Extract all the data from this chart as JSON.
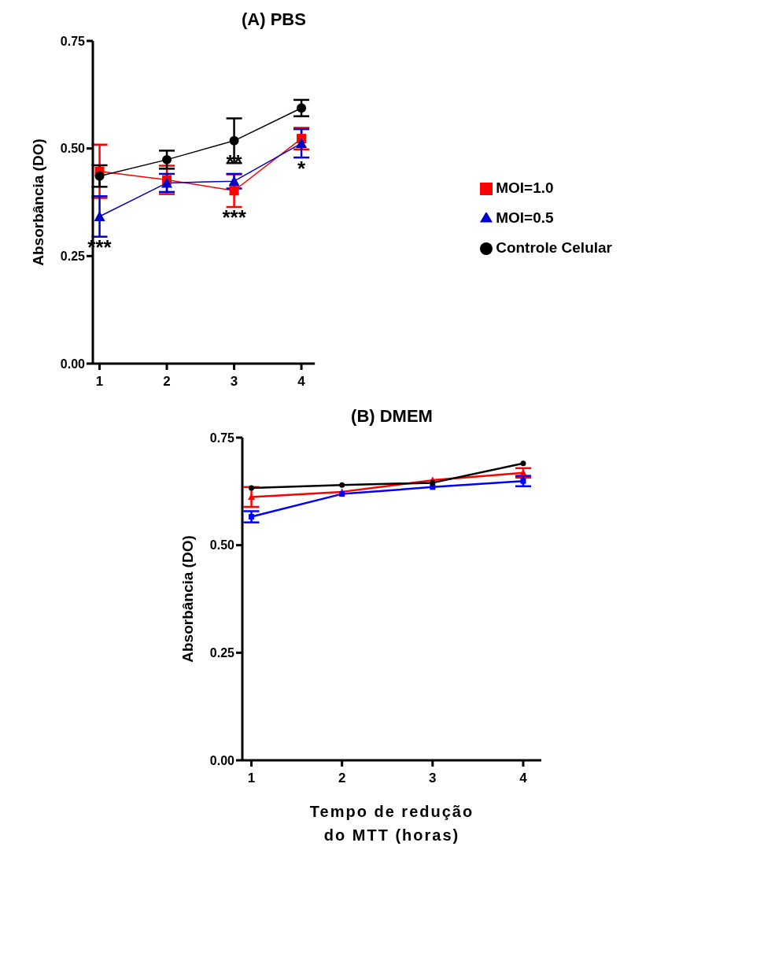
{
  "chart_data": [
    {
      "type": "line",
      "title": "(A) PBS",
      "ylabel": "Absorbância (DO)",
      "x": [
        1,
        2,
        3,
        4
      ],
      "xlim": [
        0.9,
        4.2
      ],
      "xticks": [
        1,
        2,
        3,
        4
      ],
      "ylim": [
        0,
        0.75
      ],
      "yticks": [
        {
          "value": 0,
          "label": "0.00"
        },
        {
          "value": 0.25,
          "label": "0.25"
        },
        {
          "value": 0.5,
          "label": "0.50"
        },
        {
          "value": 0.75,
          "label": "0.75"
        }
      ],
      "grid": false,
      "legend": "right",
      "series": [
        {
          "name": "MOI=1.0",
          "color": "#ff0000",
          "marker": "square",
          "values": [
            0.447,
            0.427,
            0.402,
            0.523
          ],
          "errors": [
            0.062,
            0.033,
            0.038,
            0.025
          ]
        },
        {
          "name": "MOI=0.5",
          "color": "#0000cc",
          "marker": "triangle",
          "values": [
            0.342,
            0.42,
            0.424,
            0.512
          ],
          "errors": [
            0.047,
            0.021,
            0.017,
            0.033
          ]
        },
        {
          "name": "Controle Celular",
          "color": "#000000",
          "marker": "circle",
          "values": [
            0.436,
            0.474,
            0.518,
            0.594
          ],
          "errors": [
            0.025,
            0.021,
            0.052,
            0.019
          ]
        }
      ],
      "annotations": [
        {
          "text": "***",
          "x": 1,
          "y": 0.295
        },
        {
          "text": "**",
          "x": 3,
          "y": 0.441
        },
        {
          "text": "***",
          "x": 3,
          "y": 0.364
        },
        {
          "text": "*",
          "x": 4,
          "y": 0.479
        }
      ]
    },
    {
      "type": "line",
      "title": "(B) DMEM",
      "ylabel": "Absorbância (DO)",
      "xlabel": "Tempo de redução do MTT (horas)",
      "x": [
        1,
        2,
        3,
        4
      ],
      "xlim": [
        0.9,
        4.2
      ],
      "xticks": [
        1,
        2,
        3,
        4
      ],
      "ylim": [
        0,
        0.75
      ],
      "yticks": [
        {
          "value": 0,
          "label": "0.00"
        },
        {
          "value": 0.25,
          "label": "0.25"
        },
        {
          "value": 0.5,
          "label": "0.50"
        },
        {
          "value": 0.75,
          "label": "0.75"
        }
      ],
      "grid": false,
      "legend": false,
      "series": [
        {
          "color": "#ff0000",
          "marker": "triangle",
          "values": [
            0.612,
            0.624,
            0.651,
            0.668
          ],
          "errors": [
            0.023,
            null,
            null,
            0.011
          ]
        },
        {
          "color": "#0000ff",
          "marker": "square",
          "values": [
            0.566,
            0.619,
            0.635,
            0.649
          ],
          "errors": [
            0.013,
            null,
            null,
            0.012
          ]
        },
        {
          "color": "#000000",
          "marker": "circle",
          "values": [
            0.633,
            0.64,
            0.645,
            0.69
          ]
        }
      ]
    }
  ]
}
